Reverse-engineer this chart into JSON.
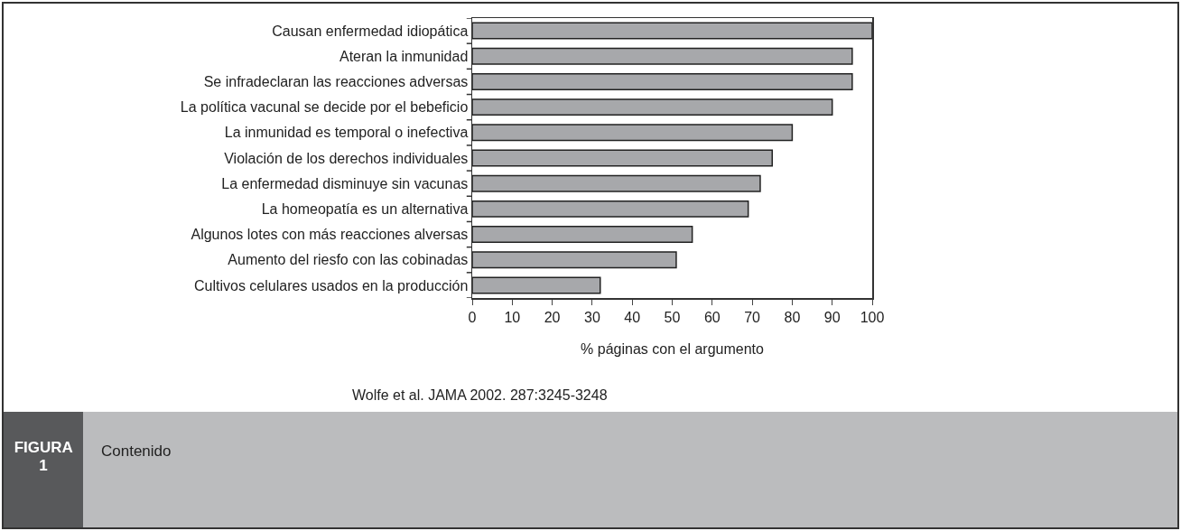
{
  "chart_data": {
    "type": "bar",
    "orientation": "horizontal",
    "xlabel": "% páginas con el argumento",
    "categories": [
      "Causan enfermedad idiopática",
      "Ateran la inmunidad",
      "Se infradeclaran las reacciones adversas",
      "La política vacunal se decide por el bebeficio",
      "La inmunidad es temporal o inefectiva",
      "Violación de los derechos individuales",
      "La enfermedad disminuye sin vacunas",
      "La homeopatía es un alternativa",
      "Algunos lotes con más reacciones alversas",
      "Aumento del riesfo con las cobinadas",
      "Cultivos celulares usados en la producción"
    ],
    "values": [
      100,
      95,
      95,
      90,
      80,
      75,
      72,
      69,
      55,
      51,
      32
    ],
    "color": "#a7a8ab",
    "xlim": [
      0,
      100
    ],
    "xticks": [
      0,
      10,
      20,
      30,
      40,
      50,
      60,
      70,
      80,
      90,
      100
    ],
    "grid": false,
    "legend": false,
    "annotations": [
      "Wolfe et al. JAMA 2002. 287:3245-3248",
      "FIGURA 1",
      "Contenido"
    ]
  }
}
